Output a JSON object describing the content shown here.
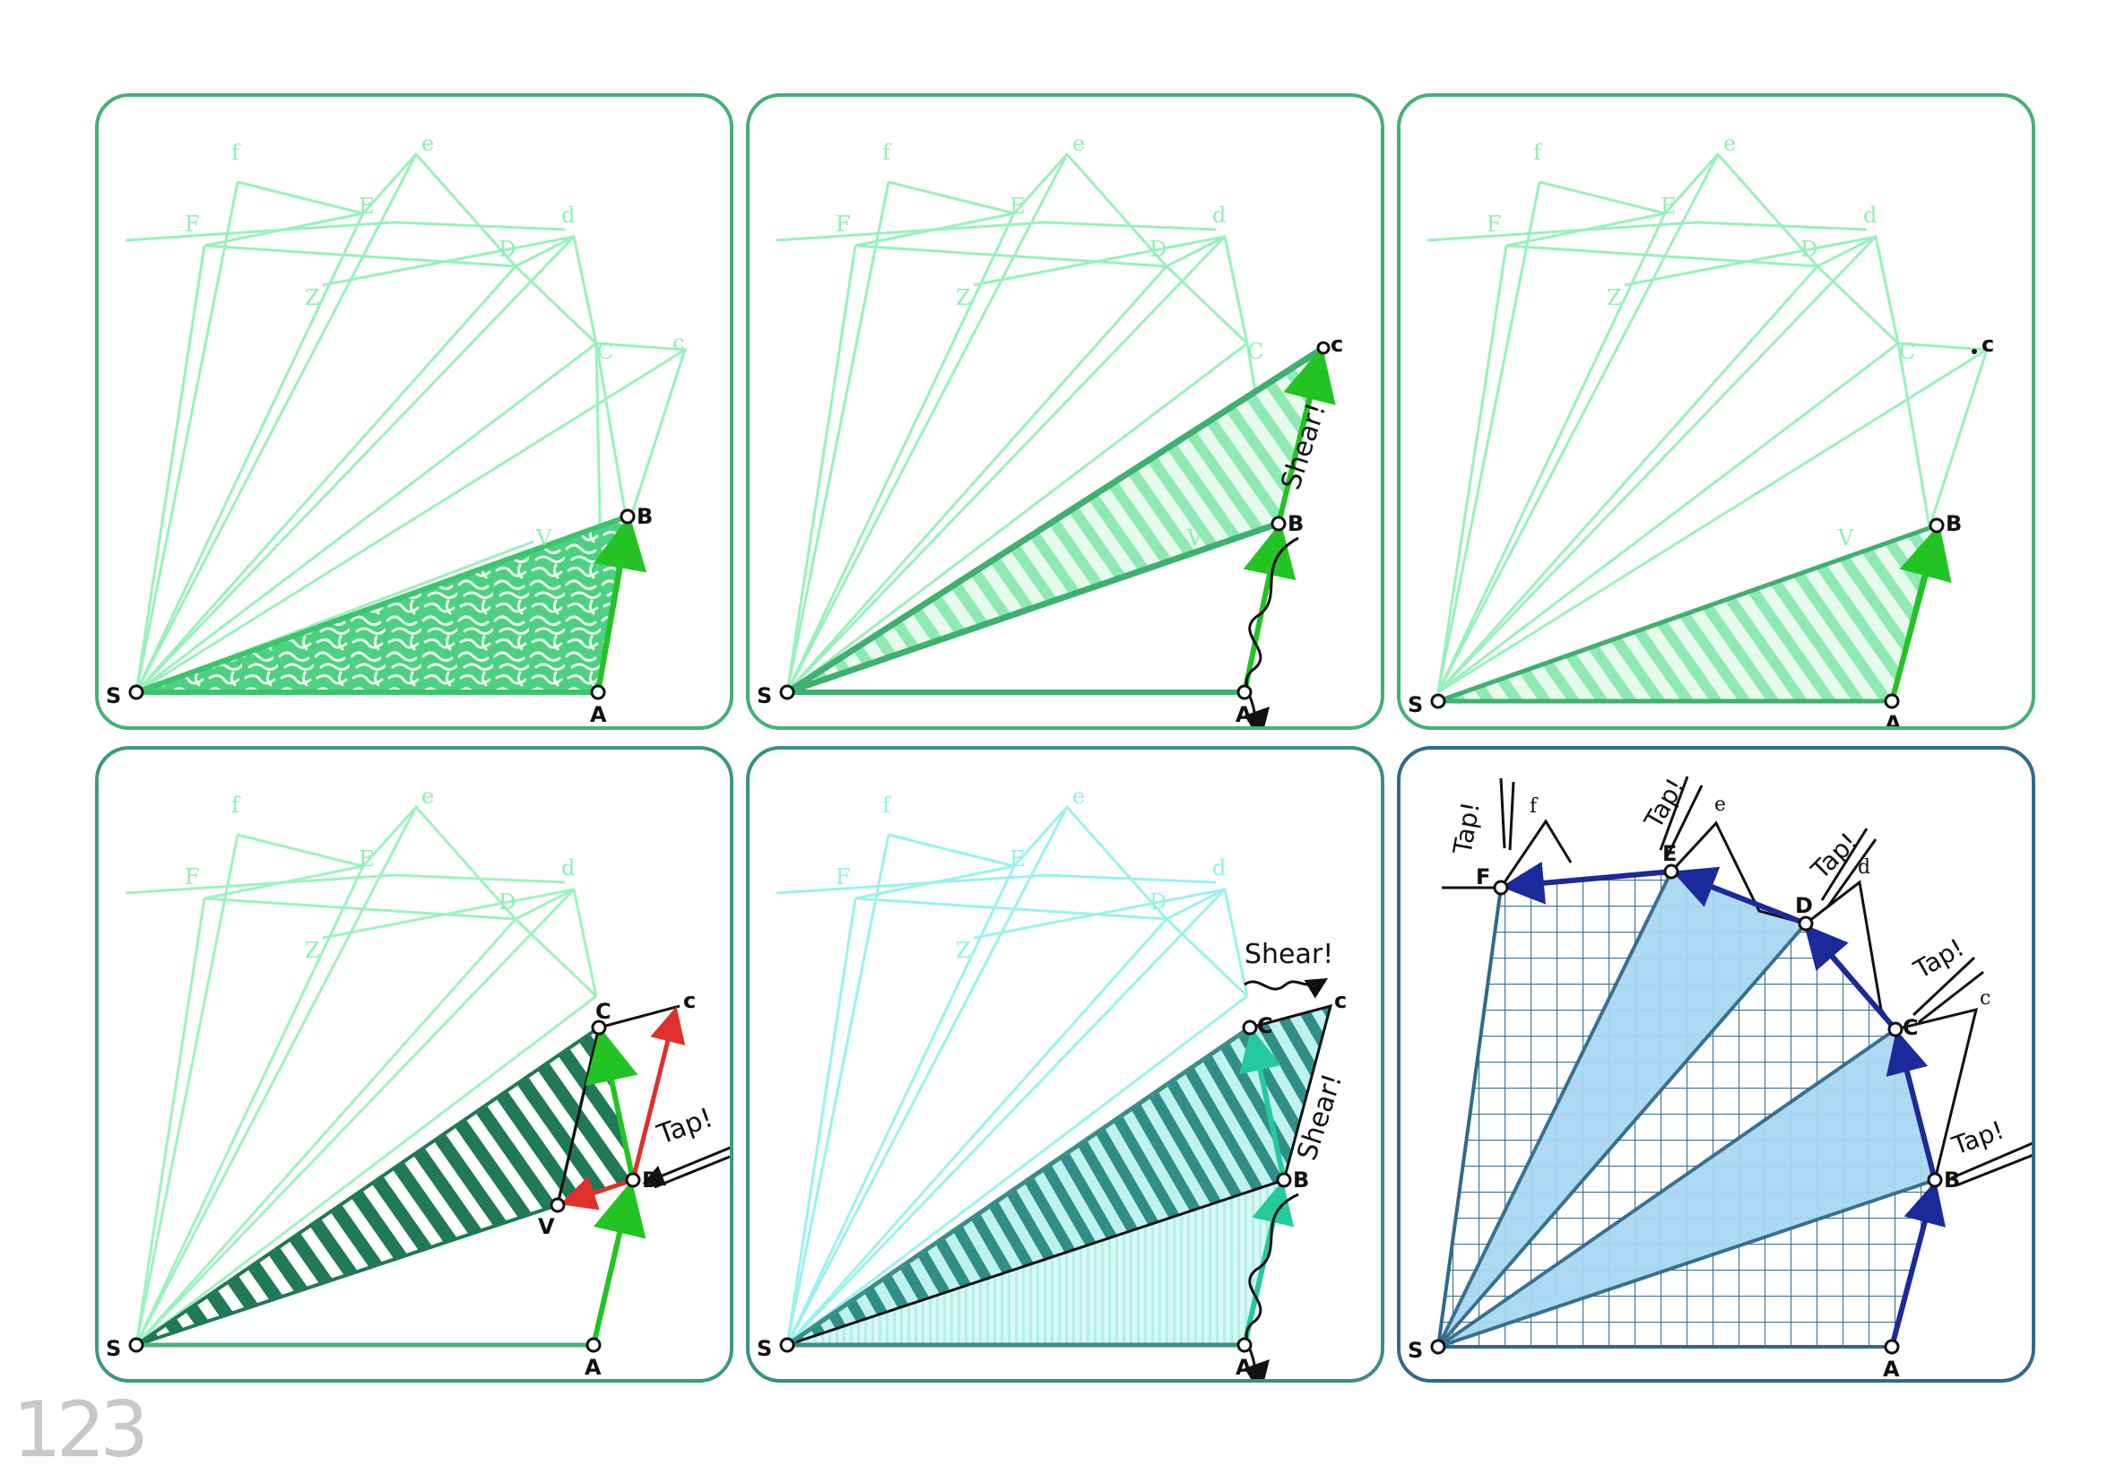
{
  "figure": {
    "page_number": "123",
    "labels": {
      "f": "f",
      "e": "e",
      "d": "d",
      "c": "c",
      "F": "F",
      "E": "E",
      "D": "D",
      "C": "C",
      "B": "B",
      "A": "A",
      "S": "S",
      "Z": "Z",
      "V": "V"
    },
    "annotations": {
      "shear": "Shear!",
      "tap": "Tap!"
    },
    "colors": {
      "faint_lines": "#8ef0b4",
      "faint_lines_cyan": "#8ff2ea",
      "green_arrow": "#22c322",
      "dark_green_hatch": "#1f7a55",
      "red_arrow": "#e0302b",
      "blue_arrow": "#1a2a9a",
      "blue_fill": "#a9d8f2",
      "grid": "#3d6f8f"
    }
  }
}
